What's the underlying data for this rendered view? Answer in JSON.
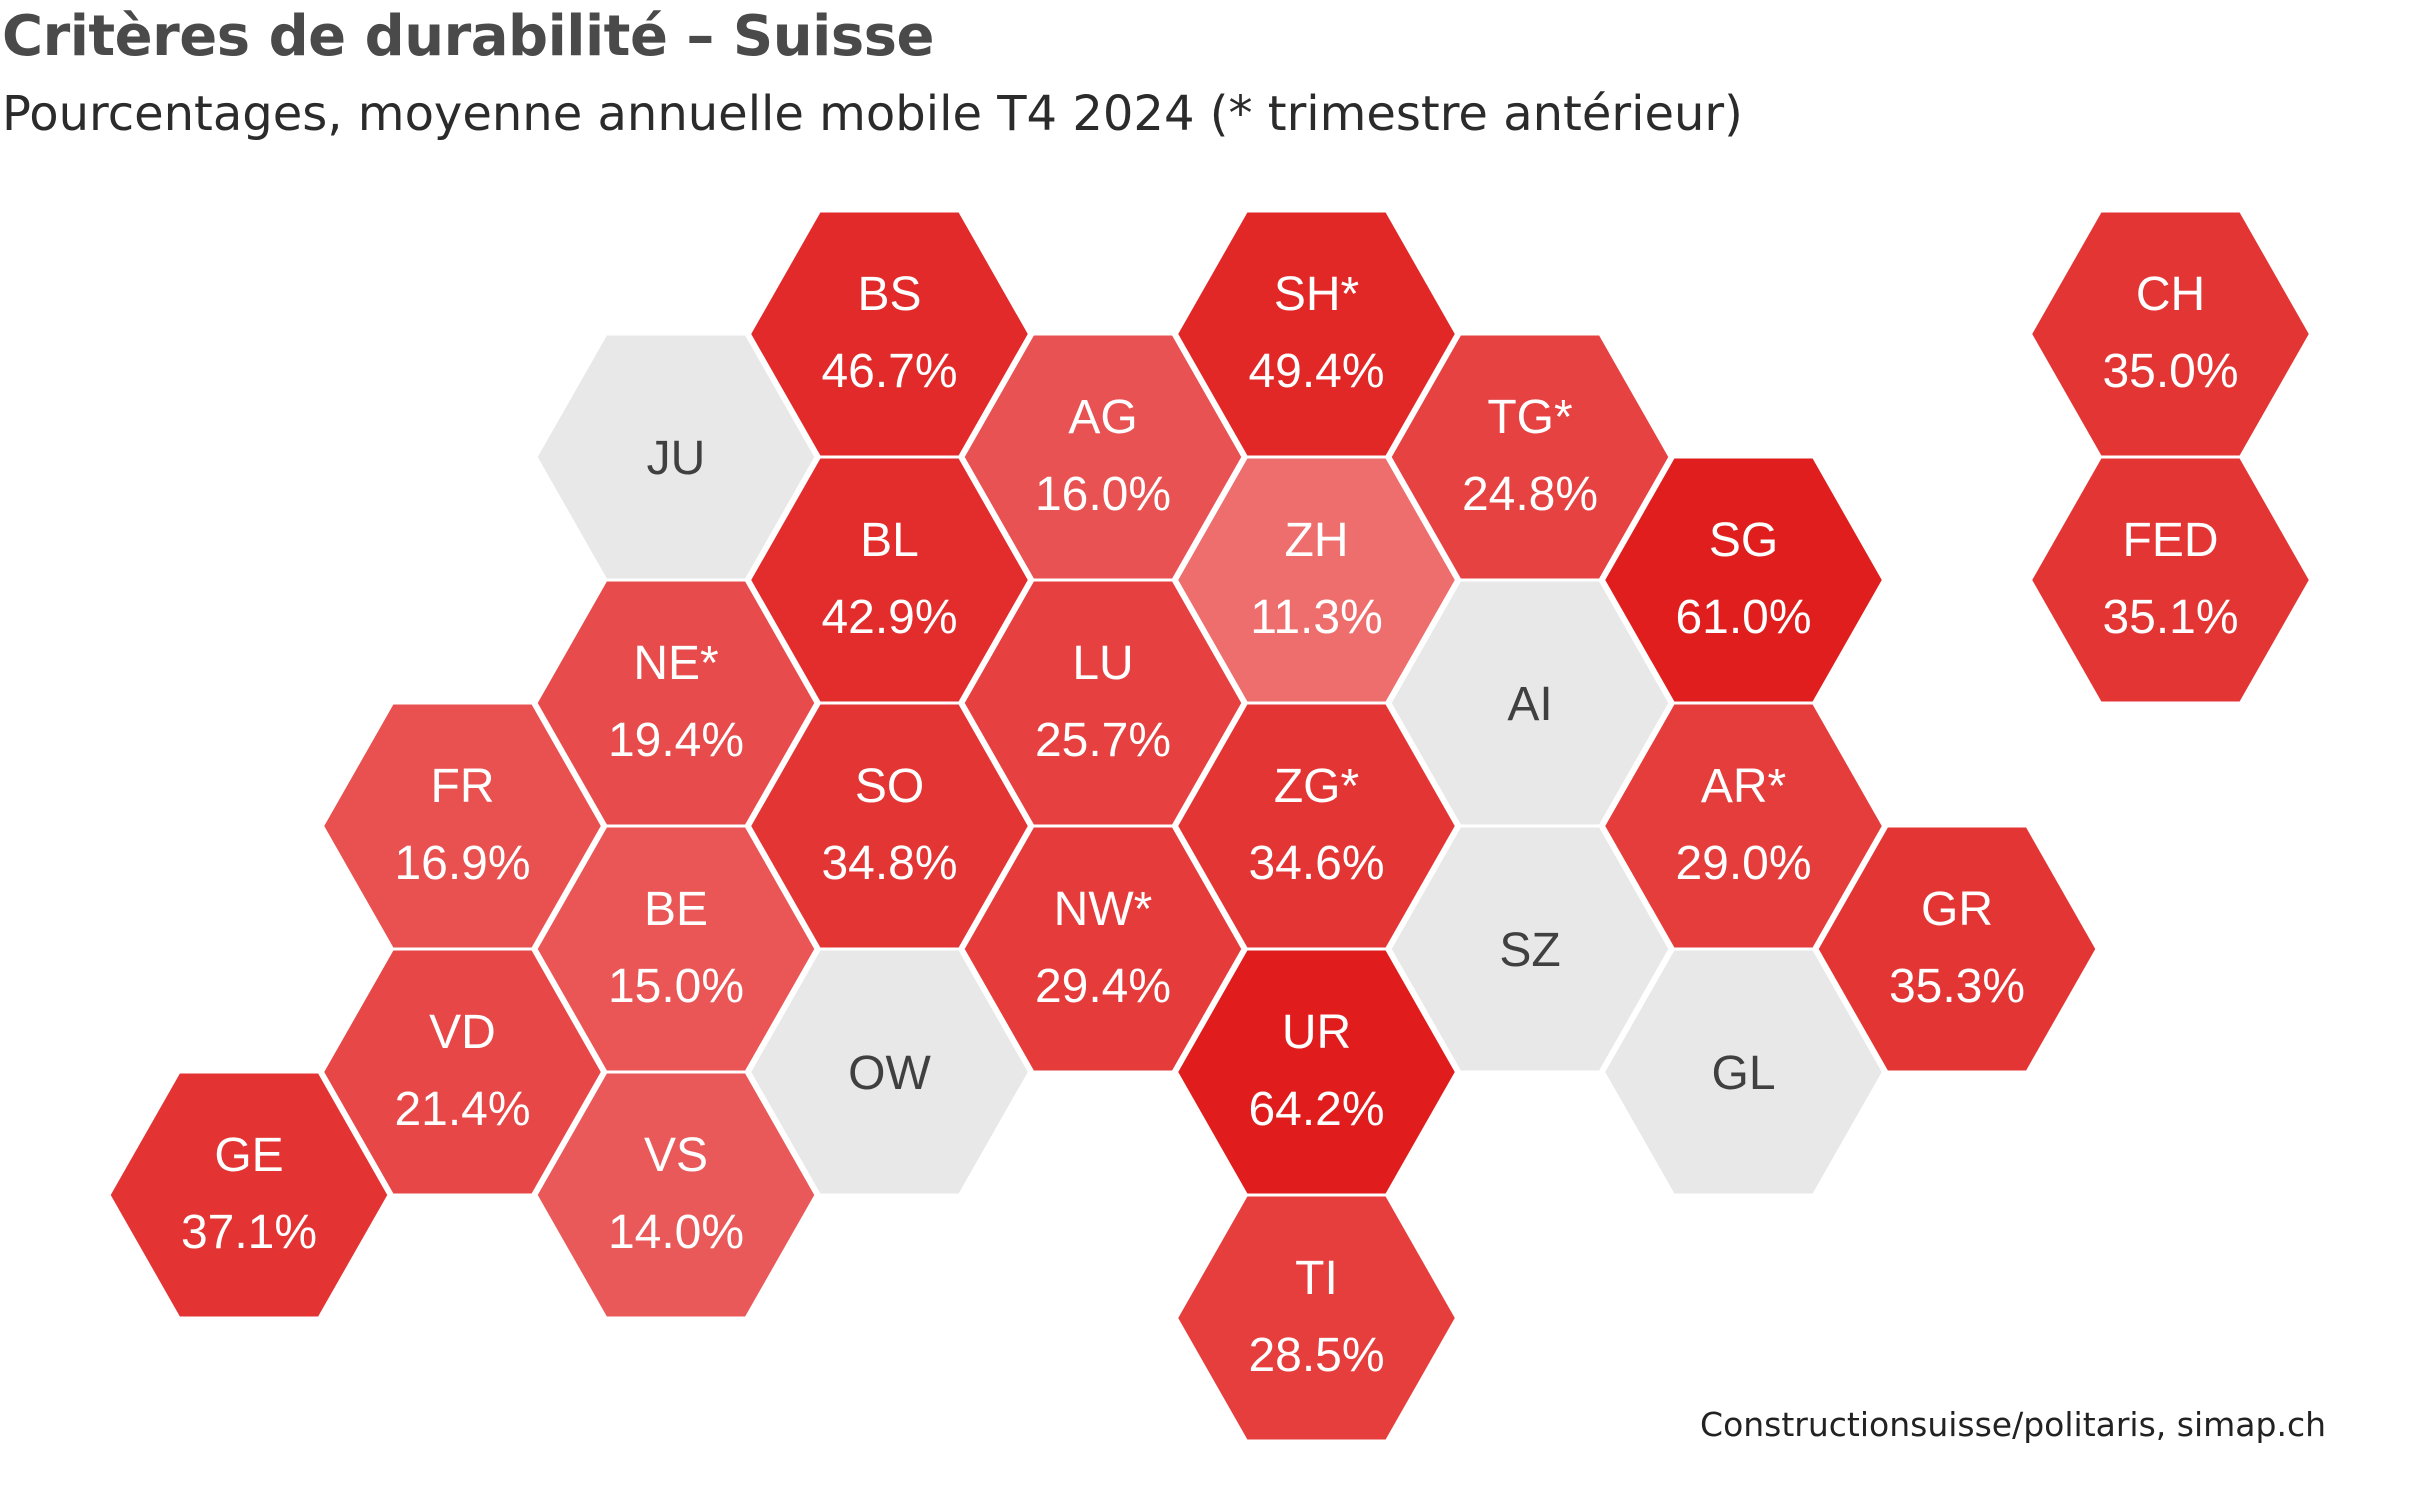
{
  "title": "Critères de durabilité – Suisse",
  "subtitle": "Pourcentages, moyenne annuelle mobile T4 2024 (* trimestre antérieur)",
  "source": "Constructionsuisse/politaris, simap.ch",
  "colors": {
    "no_data": "#e8e8e8",
    "label_dark": "#404040",
    "label_light": "#ffffff",
    "scale_low": "#ee6e6e",
    "scale_high": "#e01c1c",
    "stroke": "#ffffff"
  },
  "units": [
    {
      "code": "BS",
      "label": "BS",
      "value": 46.7,
      "value_text": "46.7%",
      "col": 3,
      "row": 0
    },
    {
      "code": "SH",
      "label": "SH*",
      "value": 49.4,
      "value_text": "49.4%",
      "col": 5,
      "row": 0
    },
    {
      "code": "CH",
      "label": "CH",
      "value": 35.0,
      "value_text": "35.0%",
      "col": 9,
      "row": 0
    },
    {
      "code": "JU",
      "label": "JU",
      "value": null,
      "value_text": "",
      "col": 2,
      "row": 1
    },
    {
      "code": "AG",
      "label": "AG",
      "value": 16.0,
      "value_text": "16.0%",
      "col": 4,
      "row": 1
    },
    {
      "code": "TG",
      "label": "TG*",
      "value": 24.8,
      "value_text": "24.8%",
      "col": 6,
      "row": 1
    },
    {
      "code": "BL",
      "label": "BL",
      "value": 42.9,
      "value_text": "42.9%",
      "col": 3,
      "row": 2
    },
    {
      "code": "ZH",
      "label": "ZH",
      "value": 11.3,
      "value_text": "11.3%",
      "col": 5,
      "row": 2
    },
    {
      "code": "SG",
      "label": "SG",
      "value": 61.0,
      "value_text": "61.0%",
      "col": 7,
      "row": 2
    },
    {
      "code": "FED",
      "label": "FED",
      "value": 35.1,
      "value_text": "35.1%",
      "col": 9,
      "row": 2
    },
    {
      "code": "NE",
      "label": "NE*",
      "value": 19.4,
      "value_text": "19.4%",
      "col": 2,
      "row": 3
    },
    {
      "code": "LU",
      "label": "LU",
      "value": 25.7,
      "value_text": "25.7%",
      "col": 4,
      "row": 3
    },
    {
      "code": "AI",
      "label": "AI",
      "value": null,
      "value_text": "",
      "col": 6,
      "row": 3
    },
    {
      "code": "FR",
      "label": "FR",
      "value": 16.9,
      "value_text": "16.9%",
      "col": 1,
      "row": 4
    },
    {
      "code": "SO",
      "label": "SO",
      "value": 34.8,
      "value_text": "34.8%",
      "col": 3,
      "row": 4
    },
    {
      "code": "ZG",
      "label": "ZG*",
      "value": 34.6,
      "value_text": "34.6%",
      "col": 5,
      "row": 4
    },
    {
      "code": "AR",
      "label": "AR*",
      "value": 29.0,
      "value_text": "29.0%",
      "col": 7,
      "row": 4
    },
    {
      "code": "BE",
      "label": "BE",
      "value": 15.0,
      "value_text": "15.0%",
      "col": 2,
      "row": 5
    },
    {
      "code": "NW",
      "label": "NW*",
      "value": 29.4,
      "value_text": "29.4%",
      "col": 4,
      "row": 5
    },
    {
      "code": "SZ",
      "label": "SZ",
      "value": null,
      "value_text": "",
      "col": 6,
      "row": 5
    },
    {
      "code": "GR",
      "label": "GR",
      "value": 35.3,
      "value_text": "35.3%",
      "col": 8,
      "row": 5
    },
    {
      "code": "VD",
      "label": "VD",
      "value": 21.4,
      "value_text": "21.4%",
      "col": 1,
      "row": 6
    },
    {
      "code": "OW",
      "label": "OW",
      "value": null,
      "value_text": "",
      "col": 3,
      "row": 6
    },
    {
      "code": "UR",
      "label": "UR",
      "value": 64.2,
      "value_text": "64.2%",
      "col": 5,
      "row": 6
    },
    {
      "code": "GL",
      "label": "GL",
      "value": null,
      "value_text": "",
      "col": 7,
      "row": 6
    },
    {
      "code": "GE",
      "label": "GE",
      "value": 37.1,
      "value_text": "37.1%",
      "col": 0,
      "row": 7
    },
    {
      "code": "VS",
      "label": "VS",
      "value": 14.0,
      "value_text": "14.0%",
      "col": 2,
      "row": 7
    },
    {
      "code": "TI",
      "label": "TI",
      "value": 28.5,
      "value_text": "28.5%",
      "col": 5,
      "row": 8
    }
  ]
}
